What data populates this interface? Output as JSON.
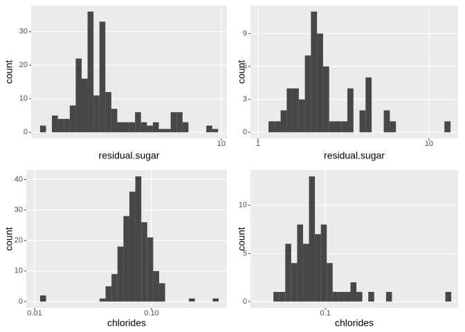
{
  "chart_data": [
    {
      "type": "histogram",
      "x_label": "residual.sugar",
      "y_label": "count",
      "log_x": true,
      "grid": true,
      "color": "#474747",
      "bins": [
        1.114,
        1.197,
        1.286,
        1.382,
        1.485,
        1.596,
        1.715,
        1.843,
        1.98,
        2.127,
        2.286,
        2.456,
        2.639,
        2.836,
        3.047,
        3.273,
        3.517,
        3.779,
        4.061,
        4.363,
        4.688,
        5.037,
        5.412,
        5.815,
        6.249,
        6.714,
        7.214,
        7.752,
        8.329,
        8.95,
        9.616
      ],
      "values": [
        2,
        0,
        5,
        4,
        4,
        8,
        22,
        16,
        36,
        11,
        33,
        12,
        7,
        3,
        3,
        3,
        6,
        3,
        2,
        3,
        1,
        1,
        6,
        6,
        3,
        0,
        0,
        0,
        2,
        1
      ],
      "xlim": [
        1.0,
        10.7
      ],
      "xticks": [
        10
      ],
      "ylim": [
        -1.8,
        37.8
      ],
      "yticks": [
        0,
        10,
        20,
        30
      ]
    },
    {
      "type": "histogram",
      "x_label": "residual.sugar",
      "y_label": "count",
      "log_x": true,
      "grid": true,
      "color": "#474747",
      "bins": [
        1.151,
        1.249,
        1.355,
        1.471,
        1.596,
        1.732,
        1.879,
        2.039,
        2.213,
        2.401,
        2.606,
        2.828,
        3.069,
        3.33,
        3.614,
        3.922,
        4.256,
        4.618,
        5.012,
        5.439,
        5.902,
        6.405,
        6.95,
        7.542,
        8.185,
        8.882,
        9.638,
        10.459,
        11.35,
        12.317,
        13.366
      ],
      "values": [
        1,
        1,
        2,
        4,
        4,
        3,
        7,
        11,
        9,
        6,
        1,
        1,
        1,
        4,
        0,
        2,
        5,
        0,
        0,
        2,
        1,
        0,
        0,
        0,
        0,
        0,
        0,
        0,
        0,
        1
      ],
      "xlim": [
        0.903,
        14.8
      ],
      "xticks": [
        1,
        10
      ],
      "ylim": [
        -0.55,
        11.55
      ],
      "yticks": [
        0,
        3,
        6,
        9
      ]
    },
    {
      "type": "histogram",
      "x_label": "chlorides",
      "y_label": "count",
      "log_x": true,
      "grid": true,
      "color": "#474747",
      "bins": [
        0.01114,
        0.01253,
        0.01409,
        0.01584,
        0.01781,
        0.02002,
        0.02251,
        0.02531,
        0.02846,
        0.032,
        0.03597,
        0.04045,
        0.04547,
        0.05113,
        0.05749,
        0.06463,
        0.07267,
        0.08171,
        0.09187,
        0.1033,
        0.1161,
        0.1306,
        0.1468,
        0.1651,
        0.1856,
        0.2087,
        0.2346,
        0.2638,
        0.2966,
        0.3335,
        0.375
      ],
      "values": [
        2,
        0,
        0,
        0,
        0,
        0,
        0,
        0,
        0,
        0,
        1,
        5,
        9,
        18,
        28,
        36,
        41,
        26,
        21,
        10,
        6,
        0,
        0,
        0,
        0,
        1,
        0,
        0,
        0,
        1
      ],
      "xlim": [
        0.00849,
        0.4416
      ],
      "xticks": [
        0.01,
        {
          "value": 0.1,
          "label": "0.10"
        }
      ],
      "ylim": [
        -2.05,
        43.05
      ],
      "yticks": [
        0,
        10,
        20,
        30,
        40
      ]
    },
    {
      "type": "histogram",
      "x_label": "chlorides",
      "y_label": "count",
      "log_x": true,
      "grid": true,
      "color": "#474747",
      "bins": [
        0.04498,
        0.04929,
        0.054,
        0.05916,
        0.06482,
        0.07101,
        0.0778,
        0.08524,
        0.09341,
        0.1023,
        0.1121,
        0.1228,
        0.1346,
        0.1475,
        0.1616,
        0.177,
        0.194,
        0.2125,
        0.2328,
        0.2551,
        0.2795,
        0.3062,
        0.3355,
        0.3676,
        0.4028,
        0.4413,
        0.4835,
        0.5297,
        0.5804,
        0.6359,
        0.6966
      ],
      "values": [
        1,
        1,
        6,
        4,
        8,
        6,
        13,
        7,
        8,
        4,
        1,
        1,
        1,
        2,
        1,
        0,
        1,
        0,
        0,
        1,
        0,
        0,
        0,
        0,
        0,
        0,
        0,
        0,
        0,
        1
      ],
      "xlim": [
        0.0316,
        0.774
      ],
      "xticks": [
        0.1
      ],
      "ylim": [
        -0.65,
        13.65
      ],
      "yticks": [
        0,
        5,
        10
      ]
    }
  ]
}
